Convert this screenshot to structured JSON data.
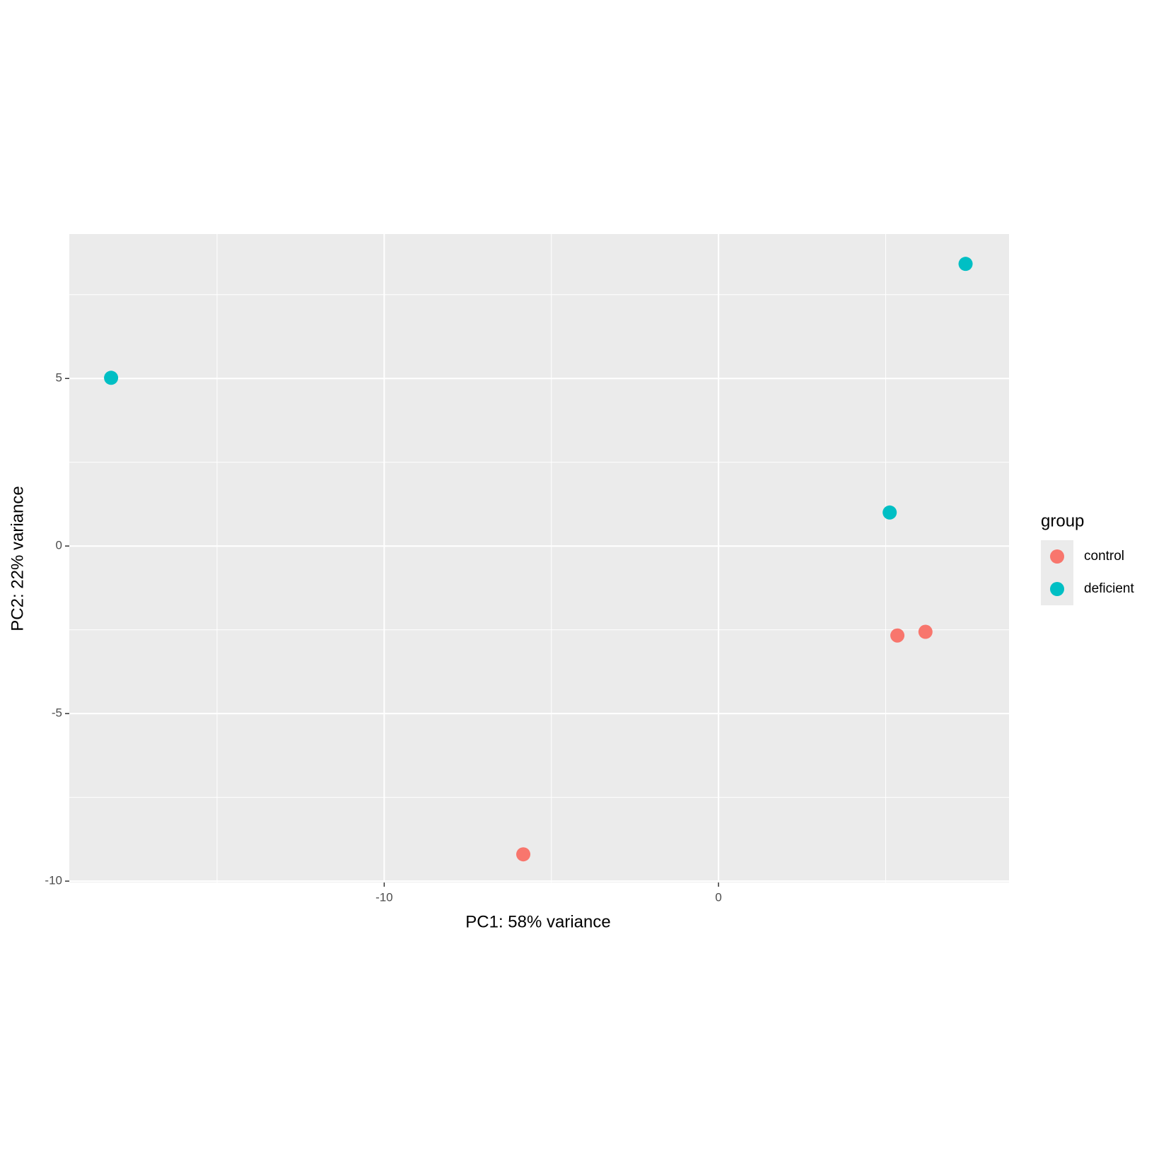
{
  "chart_data": {
    "type": "scatter",
    "xlabel": "PC1: 58% variance",
    "ylabel": "PC2: 22% variance",
    "legend_title": "group",
    "legend_position": "right",
    "series": [
      {
        "name": "control",
        "color": "#F8766D",
        "x": [
          -5.84,
          5.35,
          6.19
        ],
        "y": [
          -9.2,
          -2.67,
          -2.56
        ]
      },
      {
        "name": "deficient",
        "color": "#00BFC4",
        "x": [
          -18.17,
          7.39,
          5.12
        ],
        "y": [
          5.02,
          8.42,
          1.0
        ]
      }
    ],
    "xlim": [
      -19.42,
      8.69
    ],
    "ylim": [
      -10.04,
      9.31
    ],
    "xticks": [
      -10,
      0
    ],
    "yticks": [
      -10,
      -5,
      0,
      5
    ],
    "minor_xticks": [
      -15,
      -5,
      5
    ],
    "minor_yticks": [
      -7.5,
      -2.5,
      2.5,
      7.5
    ],
    "grid": true,
    "panel_color": "#EBEBEB"
  }
}
